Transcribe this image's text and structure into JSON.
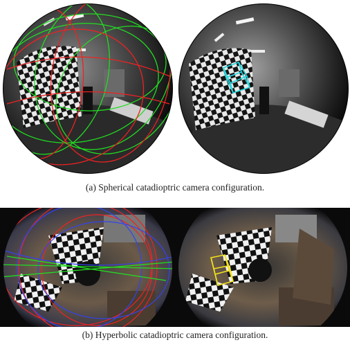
{
  "figure": {
    "row_a": {
      "caption": "(a) Spherical catadioptric camera configuration.",
      "left_image": "spherical-mirror-with-calibration-curves",
      "right_image": "spherical-mirror-with-cube-overlay"
    },
    "row_b": {
      "caption": "(b) Hyperbolic catadioptric camera configuration.",
      "left_image": "hyperbolic-mirror-with-calibration-curves",
      "right_image": "hyperbolic-mirror-with-cube-overlay"
    }
  },
  "colors": {
    "curve_green": "#22dd22",
    "curve_red": "#ee2222",
    "curve_blue": "#3344ee",
    "cube_cyan": "#22d8e0",
    "cube_yellow": "#f2e21a"
  }
}
